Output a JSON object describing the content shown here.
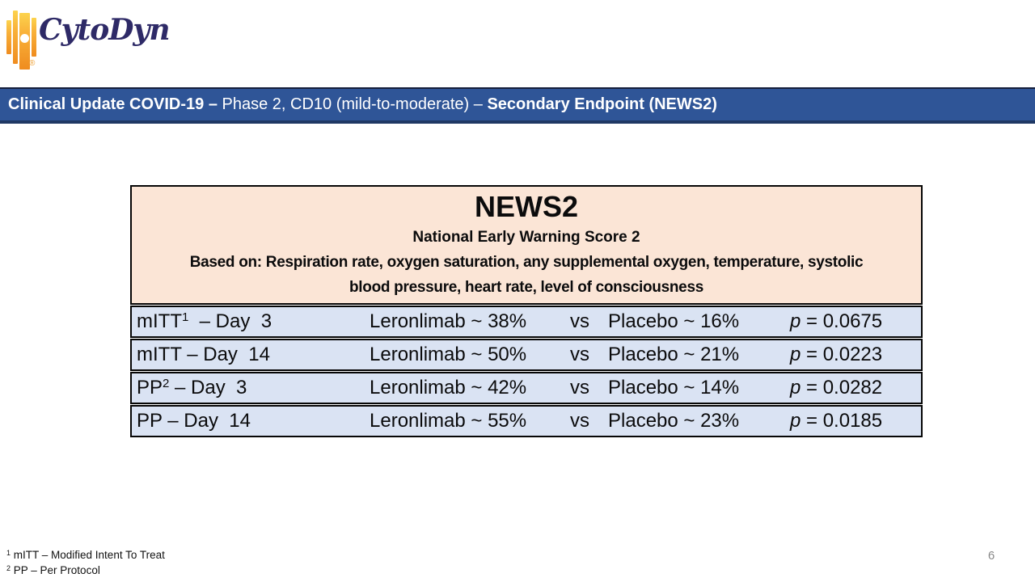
{
  "logo": {
    "text": "CytoDyn",
    "registered": "®"
  },
  "title_bar": {
    "segment_bold_1": "Clinical Update COVID-19 – ",
    "segment_regular": "Phase 2, CD10 (mild-to-moderate) – ",
    "segment_bold_2": "Secondary Endpoint (NEWS2)"
  },
  "table": {
    "title": "NEWS2",
    "subtitle": "National Early Warning Score 2",
    "basis_line1": "Based on: Respiration rate, oxygen saturation, any supplemental oxygen, temperature, systolic",
    "basis_line2": "blood pressure, heart rate, level of consciousness",
    "rows": [
      {
        "group": "mITT",
        "sup": "1",
        "label_rest": "  – Day  3",
        "leronlimab": "Leronlimab ~ 38%",
        "vs": "vs",
        "placebo": "Placebo ~ 16%",
        "p_symbol": "p",
        "p_value": " = 0.0675"
      },
      {
        "group": "mITT",
        "sup": "",
        "label_rest": " – Day  14",
        "leronlimab": "Leronlimab ~ 50%",
        "vs": "vs",
        "placebo": "Placebo ~ 21%",
        "p_symbol": "p",
        "p_value": " = 0.0223"
      },
      {
        "group": "PP",
        "sup": "2",
        "label_rest": " – Day  3",
        "leronlimab": "Leronlimab ~ 42%",
        "vs": "vs",
        "placebo": "Placebo ~ 14%",
        "p_symbol": "p",
        "p_value": " = 0.0282"
      },
      {
        "group": "PP",
        "sup": "",
        "label_rest": " – Day  14",
        "leronlimab": "Leronlimab ~ 55%",
        "vs": "vs",
        "placebo": "Placebo ~ 23%",
        "p_symbol": "p",
        "p_value": " = 0.0185"
      }
    ]
  },
  "footnotes": [
    {
      "sup": "1",
      "text": " mITT – Modified Intent To Treat"
    },
    {
      "sup": "2",
      "text": " PP – Per Protocol"
    }
  ],
  "page_number": "6",
  "colors": {
    "title_bar_blue": "#2F5597",
    "title_bar_dark_line": "#1F3864",
    "table_header_peach": "#FBE5D6",
    "table_row_blue": "#DAE3F3",
    "logo_navy": "#2E2A67",
    "logo_orange": "#F5A01E"
  }
}
